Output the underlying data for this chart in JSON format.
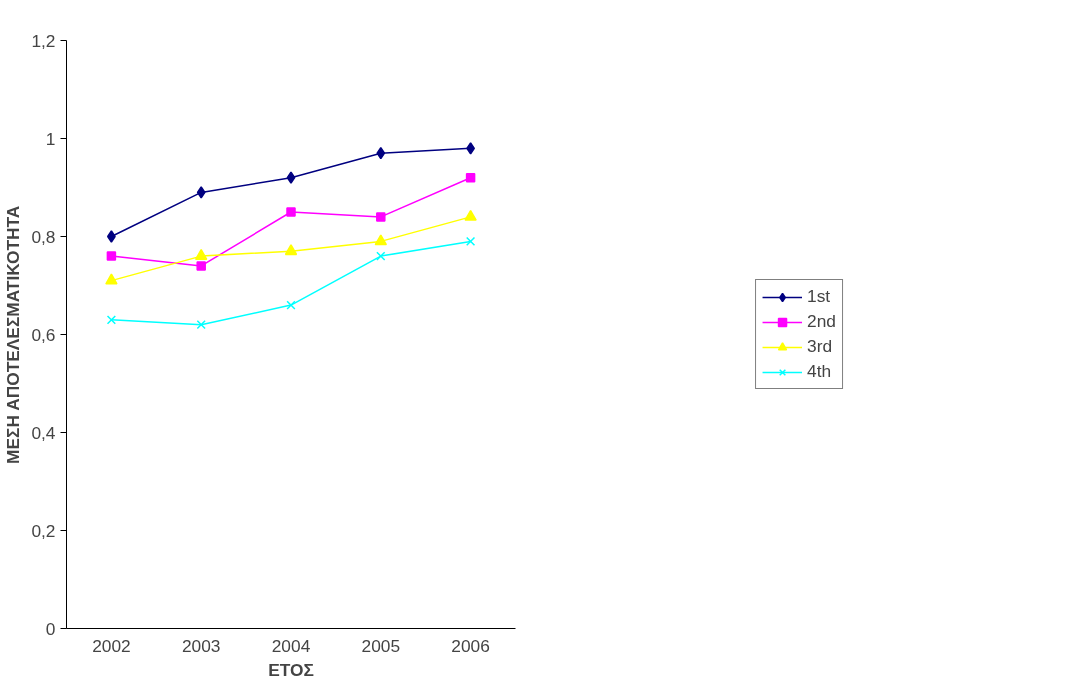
{
  "chart_data": {
    "type": "line",
    "xlabel": "ΕΤΟΣ",
    "ylabel": "ΜΕΣΗ ΑΠΟΤΕΛΕΣΜΑΤΙΚΟΤΗΤΑ",
    "categories": [
      "2002",
      "2003",
      "2004",
      "2005",
      "2006"
    ],
    "ylim": [
      0,
      1.2
    ],
    "yticks": [
      0,
      {
        "value": 0.2,
        "label": "0,2"
      },
      {
        "value": 0.4,
        "label": "0,4"
      },
      {
        "value": 0.6,
        "label": "0,6"
      },
      {
        "value": 0.8,
        "label": "0,8"
      },
      1,
      {
        "value": 1.2,
        "label": "1,2"
      }
    ],
    "grid": false,
    "legend": "right",
    "series": [
      {
        "name": "1st",
        "color": "#000080",
        "marker": "diamond",
        "values": [
          0.8,
          0.89,
          0.92,
          0.97,
          0.98
        ]
      },
      {
        "name": "2nd",
        "color": "#ff00ff",
        "marker": "square",
        "values": [
          0.76,
          0.74,
          0.85,
          0.84,
          0.92
        ]
      },
      {
        "name": "3rd",
        "color": "#ffff00",
        "marker": "triangle",
        "values": [
          0.71,
          0.76,
          0.77,
          0.79,
          0.84
        ]
      },
      {
        "name": "4th",
        "color": "#00ffff",
        "marker": "cross",
        "values": [
          0.63,
          0.62,
          0.66,
          0.76,
          0.79
        ]
      }
    ]
  }
}
